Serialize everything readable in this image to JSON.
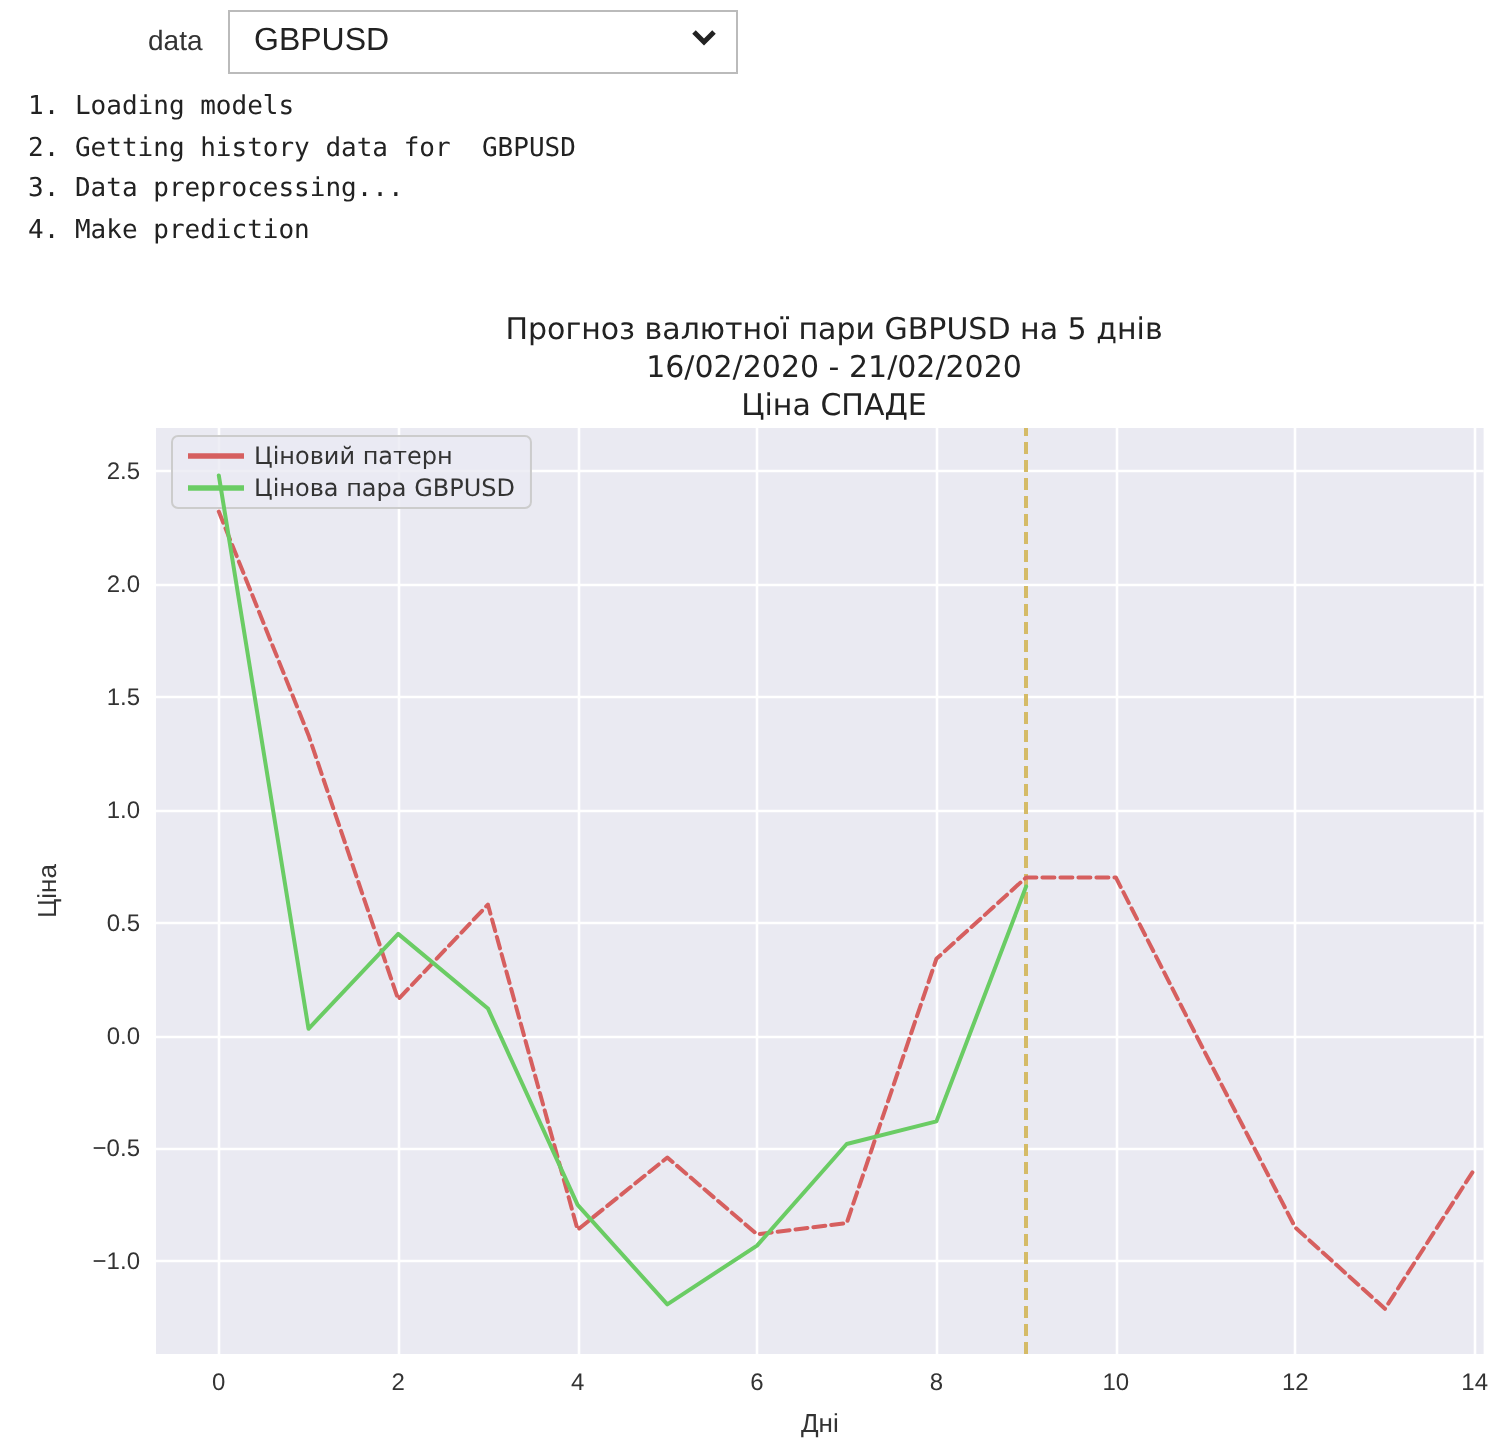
{
  "chart_data": {
    "type": "line",
    "title": "Прогноз валютної пари GBPUSD на 5 днів\n16/02/2020 - 21/02/2020\nЦіна СПАДЕ",
    "xlabel": "Дні",
    "ylabel": "Ціна",
    "annotations": [
      "data",
      "GBPUSD",
      "1. Loading models",
      "2. Getting history data for  GBPUSD",
      "3. Data preprocessing...",
      "4. Make prediction"
    ],
    "series": [
      {
        "name": "Ціновий патерн",
        "color": "#d65f5f",
        "line_style": "dashed",
        "x": [
          0,
          1,
          2,
          3,
          4,
          5,
          6,
          7,
          8,
          9,
          10,
          11,
          12,
          13,
          14
        ],
        "values": [
          2.32,
          1.33,
          0.16,
          0.58,
          -0.86,
          -0.54,
          -0.88,
          -0.83,
          0.34,
          0.7,
          0.7,
          -0.08,
          -0.85,
          -1.21,
          -0.59
        ]
      },
      {
        "name": "Цінова пара GBPUSD",
        "color": "#6acc64",
        "line_style": "solid",
        "x": [
          0,
          1,
          2,
          3,
          4,
          5,
          6,
          7,
          8,
          9
        ],
        "values": [
          2.48,
          0.03,
          0.45,
          0.12,
          -0.75,
          -1.19,
          -0.93,
          -0.48,
          -0.38,
          0.66
        ]
      }
    ],
    "ref_lines": [
      {
        "axis": "x",
        "value": 9,
        "color": "#d5bb67",
        "line_style": "dashed"
      }
    ],
    "xlim": [
      -0.7,
      14.1
    ],
    "ylim": [
      -1.41,
      2.69
    ],
    "xticks": [
      0,
      2,
      4,
      6,
      8,
      10,
      12,
      14
    ],
    "yticks": [
      {
        "value": -1,
        "label": "−1.0"
      },
      {
        "value": -0.5,
        "label": "−0.5"
      },
      {
        "value": 0,
        "label": "0.0"
      },
      {
        "value": 0.5,
        "label": "0.5"
      },
      {
        "value": 1,
        "label": "1.0"
      },
      {
        "value": 1.5,
        "label": "1.5"
      },
      {
        "value": 2,
        "label": "2.0"
      },
      {
        "value": 2.5,
        "label": "2.5"
      }
    ],
    "grid": true,
    "legend": "top left",
    "marker": "none"
  }
}
